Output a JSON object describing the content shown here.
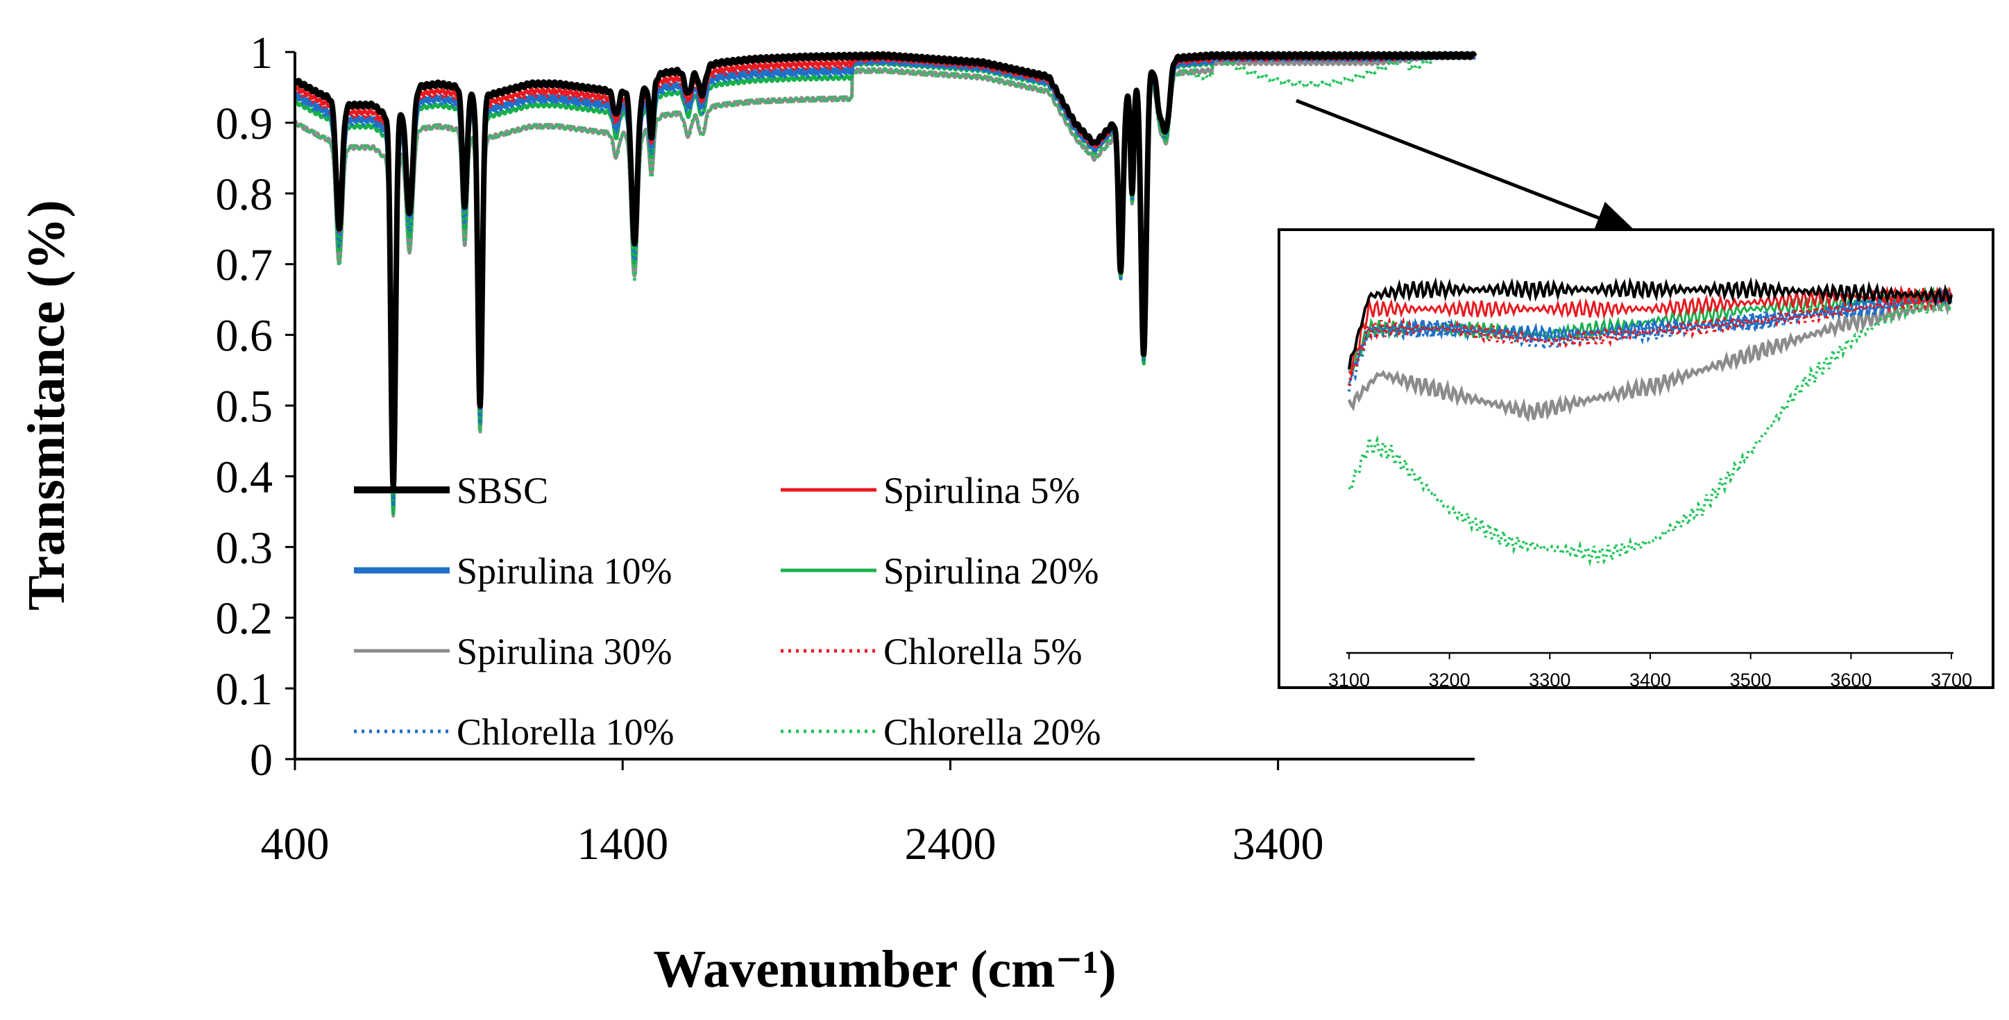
{
  "chart_data": [
    {
      "type": "line",
      "title": "",
      "xlabel": "Wavenumber (cm⁻¹)",
      "ylabel": "Transmitance (%)",
      "xlim": [
        400,
        4000
      ],
      "ylim": [
        0,
        1
      ],
      "x_ticks": [
        "400",
        "1400",
        "2400",
        "3400"
      ],
      "y_ticks": [
        "0",
        "0.1",
        "0.2",
        "0.3",
        "0.4",
        "0.5",
        "0.6",
        "0.7",
        "0.8",
        "0.9",
        "1"
      ],
      "grid": false,
      "legend_position": "bottom-left",
      "series": [
        {
          "name": "SBSC",
          "color": "#000000",
          "style": "solid",
          "offset": 0.0,
          "plateau": 0.995
        },
        {
          "name": "Spirulina 5%",
          "color": "#e8191f",
          "style": "solid",
          "offset": 0.01,
          "plateau": 0.993
        },
        {
          "name": "Spirulina 10%",
          "color": "#1f6fc8",
          "style": "solid",
          "offset": 0.02,
          "plateau": 0.992
        },
        {
          "name": "Spirulina 20%",
          "color": "#18b04a",
          "style": "solid",
          "offset": 0.03,
          "plateau": 0.992
        },
        {
          "name": "Spirulina 30%",
          "color": "#8c8c8c",
          "style": "solid",
          "offset": 0.06,
          "plateau": 0.985
        },
        {
          "name": "Chlorella 5%",
          "color": "#e8191f",
          "style": "dotted",
          "offset": 0.015,
          "plateau": 0.991
        },
        {
          "name": "Chlorella 10%",
          "color": "#1f6fc8",
          "style": "dotted",
          "offset": 0.025,
          "plateau": 0.991
        },
        {
          "name": "Chlorella 20%",
          "color": "#22c35a",
          "style": "dotted",
          "offset": 0.06,
          "plateau": 0.955
        }
      ],
      "baseline_points": [
        [
          400,
          0.96
        ],
        [
          480,
          0.94
        ],
        [
          560,
          0.925
        ],
        [
          640,
          0.925
        ],
        [
          700,
          0.9
        ],
        [
          760,
          0.95
        ],
        [
          840,
          0.955
        ],
        [
          900,
          0.95
        ],
        [
          960,
          0.935
        ],
        [
          1040,
          0.945
        ],
        [
          1120,
          0.955
        ],
        [
          1200,
          0.955
        ],
        [
          1280,
          0.95
        ],
        [
          1360,
          0.945
        ],
        [
          1460,
          0.945
        ],
        [
          1520,
          0.97
        ],
        [
          1600,
          0.975
        ],
        [
          1700,
          0.985
        ],
        [
          1800,
          0.99
        ],
        [
          1950,
          0.993
        ],
        [
          2200,
          0.995
        ],
        [
          2500,
          0.985
        ],
        [
          2700,
          0.965
        ],
        [
          2780,
          0.9
        ],
        [
          2840,
          0.87
        ],
        [
          2900,
          0.9
        ],
        [
          2960,
          0.96
        ],
        [
          3050,
          0.99
        ],
        [
          3200,
          0.995
        ],
        [
          4000,
          0.995
        ]
      ],
      "absorption_bands": [
        {
          "center": 535,
          "width": 9,
          "min": 0.75
        },
        {
          "center": 700,
          "width": 7,
          "min": 0.38
        },
        {
          "center": 750,
          "width": 10,
          "min": 0.77
        },
        {
          "center": 918,
          "width": 7,
          "min": 0.78
        },
        {
          "center": 965,
          "width": 7,
          "min": 0.5
        },
        {
          "center": 1380,
          "width": 8,
          "min": 0.91
        },
        {
          "center": 1436,
          "width": 9,
          "min": 0.73
        },
        {
          "center": 1488,
          "width": 6,
          "min": 0.88
        },
        {
          "center": 1600,
          "width": 10,
          "min": 0.94
        },
        {
          "center": 1642,
          "width": 10,
          "min": 0.94
        },
        {
          "center": 2920,
          "width": 7,
          "min": 0.69
        },
        {
          "center": 2955,
          "width": 5,
          "min": 0.8
        },
        {
          "center": 2990,
          "width": 8,
          "min": 0.57
        },
        {
          "center": 3040,
          "width": 10,
          "min": 0.92
        },
        {
          "center": 3060,
          "width": 10,
          "min": 0.9
        }
      ]
    },
    {
      "type": "line",
      "title": "",
      "xlabel": "",
      "ylabel": "",
      "xlim": [
        3100,
        3700
      ],
      "x_ticks": [
        "3100",
        "3200",
        "3300",
        "3400",
        "3500",
        "3600",
        "3700"
      ],
      "ylim": [
        0.94,
        1.0
      ],
      "series": [
        {
          "name": "SBSC",
          "points": [
            [
              3100,
              0.984
            ],
            [
              3120,
              0.995
            ],
            [
              3160,
              0.996
            ],
            [
              3300,
              0.996
            ],
            [
              3500,
              0.996
            ],
            [
              3700,
              0.995
            ]
          ]
        },
        {
          "name": "Spirulina 5%",
          "points": [
            [
              3100,
              0.983
            ],
            [
              3120,
              0.993
            ],
            [
              3160,
              0.993
            ],
            [
              3400,
              0.993
            ],
            [
              3600,
              0.995
            ],
            [
              3700,
              0.995
            ]
          ]
        },
        {
          "name": "Spirulina 10%",
          "points": [
            [
              3100,
              0.982
            ],
            [
              3120,
              0.99
            ],
            [
              3200,
              0.99
            ],
            [
              3300,
              0.989
            ],
            [
              3500,
              0.991
            ],
            [
              3700,
              0.995
            ]
          ]
        },
        {
          "name": "Spirulina 20%",
          "points": [
            [
              3100,
              0.983
            ],
            [
              3120,
              0.99
            ],
            [
              3200,
              0.99
            ],
            [
              3300,
              0.989
            ],
            [
              3500,
              0.993
            ],
            [
              3700,
              0.995
            ]
          ]
        },
        {
          "name": "Spirulina 30%",
          "points": [
            [
              3100,
              0.978
            ],
            [
              3130,
              0.983
            ],
            [
              3200,
              0.98
            ],
            [
              3280,
              0.977
            ],
            [
              3400,
              0.981
            ],
            [
              3500,
              0.986
            ],
            [
              3600,
              0.991
            ],
            [
              3700,
              0.994
            ]
          ]
        },
        {
          "name": "Chlorella 5%",
          "points": [
            [
              3100,
              0.982
            ],
            [
              3120,
              0.99
            ],
            [
              3200,
              0.99
            ],
            [
              3300,
              0.988
            ],
            [
              3500,
              0.991
            ],
            [
              3700,
              0.995
            ]
          ]
        },
        {
          "name": "Chlorella 10%",
          "points": [
            [
              3100,
              0.981
            ],
            [
              3120,
              0.989
            ],
            [
              3200,
              0.99
            ],
            [
              3300,
              0.988
            ],
            [
              3500,
              0.991
            ],
            [
              3700,
              0.995
            ]
          ]
        },
        {
          "name": "Chlorella 20%",
          "points": [
            [
              3100,
              0.965
            ],
            [
              3120,
              0.972
            ],
            [
              3140,
              0.971
            ],
            [
              3200,
              0.962
            ],
            [
              3260,
              0.957
            ],
            [
              3300,
              0.956
            ],
            [
              3350,
              0.955
            ],
            [
              3400,
              0.957
            ],
            [
              3450,
              0.962
            ],
            [
              3500,
              0.971
            ],
            [
              3550,
              0.981
            ],
            [
              3600,
              0.988
            ],
            [
              3650,
              0.993
            ],
            [
              3700,
              0.994
            ]
          ]
        }
      ]
    }
  ]
}
